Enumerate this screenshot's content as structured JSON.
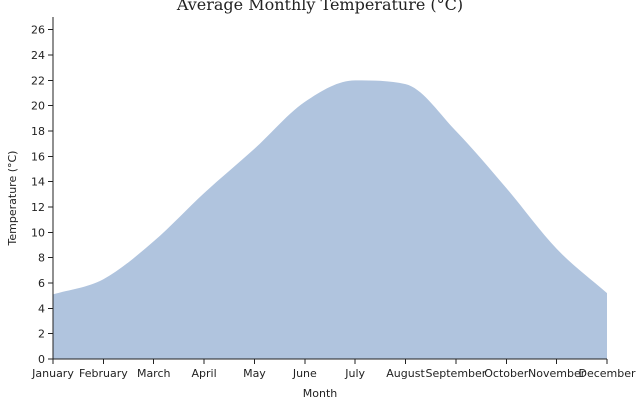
{
  "chart_data": {
    "type": "area",
    "title": "Average Monthly Temperature (°C)",
    "xlabel": "Month",
    "ylabel": "Temperature (°C)",
    "categories": [
      "January",
      "February",
      "March",
      "April",
      "May",
      "June",
      "July",
      "August",
      "September",
      "October",
      "November",
      "December"
    ],
    "series": [
      {
        "values": [
          5.1,
          6.3,
          9.3,
          13.1,
          16.6,
          20.3,
          22.0,
          21.7,
          18.0,
          13.5,
          8.7,
          5.2
        ]
      }
    ],
    "ylim": [
      0,
      27
    ],
    "yticks": [
      0,
      2,
      4,
      6,
      8,
      10,
      12,
      14,
      16,
      18,
      20,
      22,
      24,
      26
    ],
    "grid": false,
    "colors": {
      "area": "#b0c4de",
      "axis": "#222222"
    }
  }
}
